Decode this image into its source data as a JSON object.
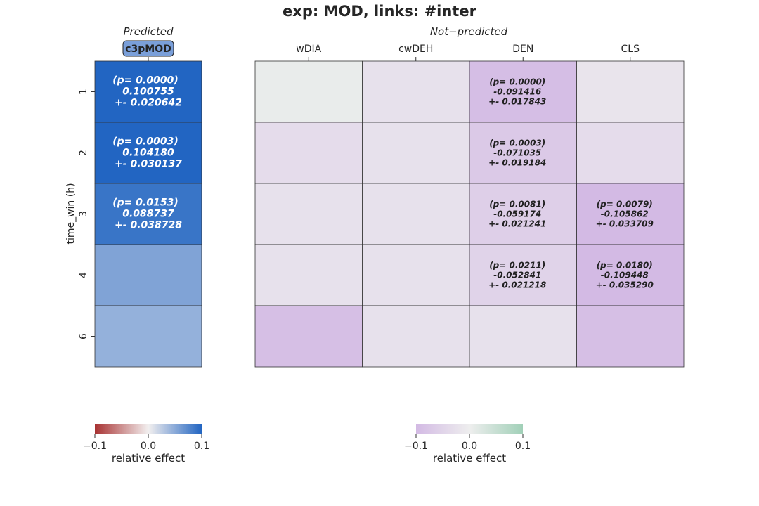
{
  "title": "exp: MOD, links: #inter",
  "chart_data": {
    "type": "heatmap",
    "ylabel": "time_win (h)",
    "rows": [
      "1",
      "2",
      "3",
      "4",
      "6"
    ],
    "predicted": {
      "header": "Predicted",
      "columns": [
        "c3pMOD"
      ],
      "values": [
        [
          0.100755
        ],
        [
          0.10418
        ],
        [
          0.088737
        ],
        [
          0.055
        ],
        [
          0.045
        ]
      ],
      "annotations": [
        [
          {
            "p": "(p= 0.0000)",
            "value": "0.100755",
            "err": "+- 0.020642"
          }
        ],
        [
          {
            "p": "(p= 0.0003)",
            "value": "0.104180",
            "err": "+- 0.030137"
          }
        ],
        [
          {
            "p": "(p= 0.0153)",
            "value": "0.088737",
            "err": "+- 0.038728"
          }
        ],
        [
          null
        ],
        [
          null
        ]
      ],
      "colorbar": {
        "label": "relative effect",
        "ticks": [
          "−0.1",
          "0.0",
          "0.1"
        ],
        "range": [
          -0.1,
          0.1
        ],
        "colors": [
          "#a83232",
          "#f2efef",
          "#2265c2"
        ]
      }
    },
    "not_predicted": {
      "header": "Not−predicted",
      "columns": [
        "wDIA",
        "cwDEH",
        "DEN",
        "CLS"
      ],
      "values": [
        [
          0.006,
          -0.025,
          -0.091416,
          -0.02
        ],
        [
          -0.035,
          -0.025,
          -0.071035,
          -0.035
        ],
        [
          -0.025,
          -0.025,
          -0.059174,
          -0.105862
        ],
        [
          -0.025,
          -0.025,
          -0.052841,
          -0.109448
        ],
        [
          -0.09,
          -0.025,
          -0.025,
          -0.09
        ]
      ],
      "annotations": [
        [
          null,
          null,
          {
            "p": "(p= 0.0000)",
            "value": "-0.091416",
            "err": "+- 0.017843"
          },
          null
        ],
        [
          null,
          null,
          {
            "p": "(p= 0.0003)",
            "value": "-0.071035",
            "err": "+- 0.019184"
          },
          null
        ],
        [
          null,
          null,
          {
            "p": "(p= 0.0081)",
            "value": "-0.059174",
            "err": "+- 0.021241"
          },
          {
            "p": "(p= 0.0079)",
            "value": "-0.105862",
            "err": "+- 0.033709"
          }
        ],
        [
          null,
          null,
          {
            "p": "(p= 0.0211)",
            "value": "-0.052841",
            "err": "+- 0.021218"
          },
          {
            "p": "(p= 0.0180)",
            "value": "-0.109448",
            "err": "+- 0.035290"
          }
        ],
        [
          null,
          null,
          null,
          null
        ]
      ],
      "colorbar": {
        "label": "relative effect",
        "ticks": [
          "−0.1",
          "0.0",
          "0.1"
        ],
        "range": [
          -0.1,
          0.1
        ],
        "colors": [
          "#d3bae4",
          "#eeeeee",
          "#a1d0b8"
        ]
      }
    }
  }
}
